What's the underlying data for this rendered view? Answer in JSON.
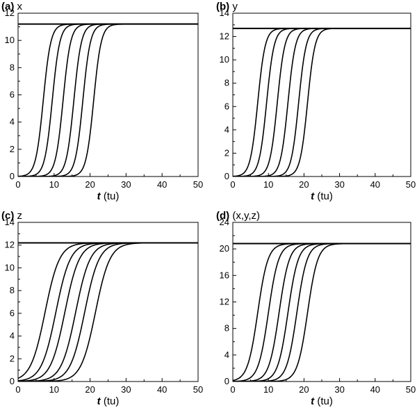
{
  "chart_data": [
    {
      "type": "line",
      "panel_letter": "(a)",
      "panel_var": "x",
      "xlabel_var": "t",
      "xlabel_unit": "(tu)",
      "xlim": [
        0,
        50
      ],
      "xticks": [
        0,
        10,
        20,
        30,
        40,
        50
      ],
      "ylim": [
        0,
        12
      ],
      "yticks": [
        0,
        2,
        4,
        6,
        8,
        10,
        12
      ],
      "plateau": 11.2,
      "steepness": 0.95,
      "series": [
        {
          "midpoint": 7.0
        },
        {
          "midpoint": 9.5
        },
        {
          "midpoint": 12.5
        },
        {
          "midpoint": 15.5
        },
        {
          "midpoint": 18.0
        },
        {
          "midpoint": 21.0
        }
      ]
    },
    {
      "type": "line",
      "panel_letter": "(b)",
      "panel_var": "y",
      "xlabel_var": "t",
      "xlabel_unit": "(tu)",
      "xlim": [
        0,
        50
      ],
      "xticks": [
        0,
        10,
        20,
        30,
        40,
        50
      ],
      "ylim": [
        0,
        14
      ],
      "yticks": [
        0,
        2,
        4,
        6,
        8,
        10,
        12,
        14
      ],
      "plateau": 12.7,
      "steepness": 0.95,
      "series": [
        {
          "midpoint": 7.0
        },
        {
          "midpoint": 9.5
        },
        {
          "midpoint": 12.5
        },
        {
          "midpoint": 15.5
        },
        {
          "midpoint": 18.5
        },
        {
          "midpoint": 21.0
        }
      ]
    },
    {
      "type": "line",
      "panel_letter": "(c)",
      "panel_var": "z",
      "xlabel_var": "t",
      "xlabel_unit": "(tu)",
      "xlim": [
        0,
        50
      ],
      "xticks": [
        0,
        10,
        20,
        30,
        40,
        50
      ],
      "ylim": [
        0,
        14
      ],
      "yticks": [
        0,
        2,
        4,
        6,
        8,
        10,
        12,
        14
      ],
      "plateau": 12.2,
      "steepness": 0.5,
      "series": [
        {
          "midpoint": 7.5
        },
        {
          "midpoint": 10.5
        },
        {
          "midpoint": 13.0
        },
        {
          "midpoint": 16.0
        },
        {
          "midpoint": 18.5
        },
        {
          "midpoint": 21.5
        }
      ]
    },
    {
      "type": "line",
      "panel_letter": "(d)",
      "panel_var": "(x,y,z)",
      "xlabel_var": "t",
      "xlabel_unit": "(tu)",
      "xlim": [
        0,
        50
      ],
      "xticks": [
        0,
        10,
        20,
        30,
        40,
        50
      ],
      "ylim": [
        0,
        24
      ],
      "yticks": [
        0,
        4,
        8,
        12,
        16,
        20,
        24
      ],
      "plateau": 20.8,
      "steepness": 0.7,
      "series": [
        {
          "midpoint": 7.0
        },
        {
          "midpoint": 10.0
        },
        {
          "midpoint": 13.0
        },
        {
          "midpoint": 15.5
        },
        {
          "midpoint": 18.0
        },
        {
          "midpoint": 21.0
        }
      ]
    }
  ]
}
